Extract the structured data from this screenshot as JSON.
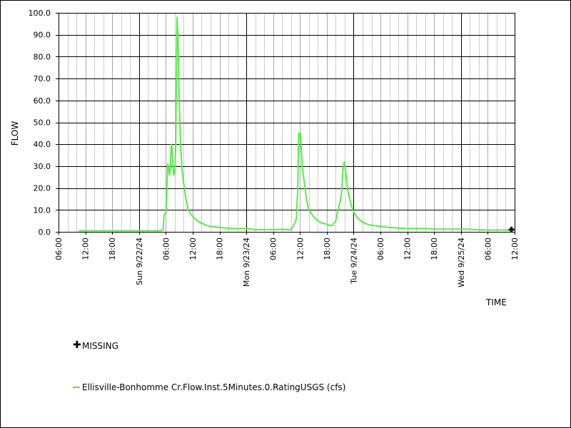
{
  "chart_data": {
    "type": "line",
    "title": "",
    "ylabel": "FLOW",
    "xlabel": "TIME",
    "ylim": [
      0,
      100
    ],
    "y_ticks": [
      "0.0",
      "10.0",
      "20.0",
      "30.0",
      "40.0",
      "50.0",
      "60.0",
      "70.0",
      "80.0",
      "90.0",
      "100.0"
    ],
    "x_tick_hours": [
      6,
      12,
      18,
      24,
      30,
      36,
      42,
      48,
      54,
      60,
      66,
      72,
      78,
      84,
      90,
      96,
      102,
      108
    ],
    "x_tick_labels": [
      "06:00",
      "12:00",
      "18:00",
      "Sun 9/22/24",
      "06:00",
      "12:00",
      "18:00",
      "Mon 9/23/24",
      "06:00",
      "12:00",
      "18:00",
      "Tue 9/24/24",
      "06:00",
      "12:00",
      "18:00",
      "Wed 9/25/24",
      "06:00",
      "12:00"
    ],
    "x_major_hours": [
      24,
      48,
      72,
      96
    ],
    "xlim_hours": [
      6,
      108
    ],
    "grid": true,
    "series": [
      {
        "name": "Ellisville-Bonhomme Cr.Flow.Inst.5Minutes.0.RatingUSGS (cfs)",
        "color": "#55ee44",
        "points": [
          [
            10.5,
            0.5
          ],
          [
            12,
            0.5
          ],
          [
            18,
            0.5
          ],
          [
            24,
            0.5
          ],
          [
            29,
            0.5
          ],
          [
            29.4,
            1
          ],
          [
            29.6,
            7.5
          ],
          [
            30,
            9
          ],
          [
            30.2,
            18
          ],
          [
            30.4,
            31
          ],
          [
            30.6,
            30
          ],
          [
            30.8,
            26
          ],
          [
            31,
            29
          ],
          [
            31.2,
            40
          ],
          [
            31.4,
            38
          ],
          [
            31.6,
            30
          ],
          [
            31.8,
            26
          ],
          [
            32,
            27
          ],
          [
            32.2,
            38
          ],
          [
            32.5,
            98
          ],
          [
            32.7,
            90
          ],
          [
            33,
            60
          ],
          [
            33.3,
            40
          ],
          [
            33.6,
            29
          ],
          [
            34,
            22
          ],
          [
            34.5,
            15
          ],
          [
            35,
            10
          ],
          [
            36,
            7
          ],
          [
            37,
            5
          ],
          [
            38,
            4
          ],
          [
            39,
            3
          ],
          [
            40,
            2.5
          ],
          [
            42,
            2
          ],
          [
            45,
            1.5
          ],
          [
            48,
            1.5
          ],
          [
            50,
            1
          ],
          [
            55,
            1
          ],
          [
            56.5,
            1.2
          ],
          [
            57.5,
            0.8
          ],
          [
            58,
            1
          ],
          [
            58.5,
            2.5
          ],
          [
            59.2,
            6
          ],
          [
            59.5,
            20
          ],
          [
            59.7,
            45
          ],
          [
            59.9,
            43
          ],
          [
            60.1,
            45
          ],
          [
            60.3,
            38
          ],
          [
            60.6,
            28
          ],
          [
            61,
            22
          ],
          [
            61.5,
            14
          ],
          [
            62,
            10
          ],
          [
            63,
            7
          ],
          [
            64,
            5
          ],
          [
            65,
            4
          ],
          [
            66,
            3.5
          ],
          [
            66.8,
            2.8
          ],
          [
            67.3,
            3
          ],
          [
            68,
            5
          ],
          [
            68.5,
            10
          ],
          [
            69,
            14
          ],
          [
            69.3,
            18
          ],
          [
            69.6,
            28
          ],
          [
            69.9,
            32
          ],
          [
            70.2,
            28
          ],
          [
            70.6,
            20
          ],
          [
            71,
            16
          ],
          [
            71.5,
            12
          ],
          [
            72,
            9
          ],
          [
            73,
            6
          ],
          [
            74,
            4.5
          ],
          [
            75,
            3.5
          ],
          [
            76,
            3
          ],
          [
            78,
            2.5
          ],
          [
            80,
            2
          ],
          [
            84,
            1.5
          ],
          [
            88,
            1.5
          ],
          [
            90,
            1.2
          ],
          [
            96,
            1.2
          ],
          [
            98,
            1.2
          ],
          [
            99,
            1
          ],
          [
            102,
            0.8
          ],
          [
            106,
            0.8
          ],
          [
            107.3,
            0.8
          ]
        ]
      }
    ],
    "missing": {
      "label": "MISSING",
      "points": [
        [
          107.3,
          1
        ]
      ]
    }
  }
}
